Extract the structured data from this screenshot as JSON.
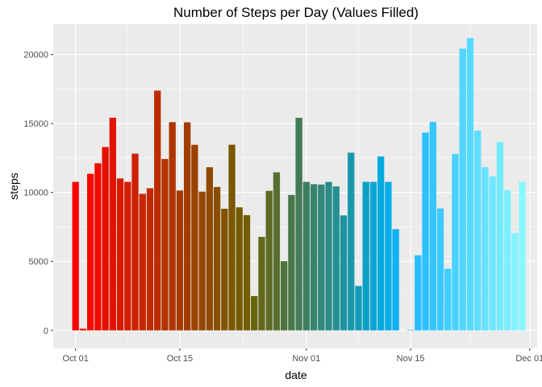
{
  "chart_data": {
    "type": "bar",
    "title": "Number of Steps per Day (Values Filled)",
    "xlabel": "date",
    "ylabel": "steps",
    "x_ticks": [
      "Oct 01",
      "Oct 15",
      "Nov 01",
      "Nov 15",
      "Dec 01"
    ],
    "y_ticks": [
      "0",
      "5000",
      "10000",
      "15000",
      "20000"
    ],
    "y_tick_values": [
      0,
      5000,
      10000,
      15000,
      20000
    ],
    "ylim": [
      -1300,
      22200
    ],
    "xlim": [
      "2012-09-28",
      "2012-12-02"
    ],
    "grid": true,
    "legend": "none",
    "color_scale": "rainbow gradient by date (red to violet)",
    "series": [
      {
        "x": [
          "2012-10-01",
          "2012-10-02",
          "2012-10-03",
          "2012-10-04",
          "2012-10-05",
          "2012-10-06",
          "2012-10-07",
          "2012-10-08",
          "2012-10-09",
          "2012-10-10",
          "2012-10-11",
          "2012-10-12",
          "2012-10-13",
          "2012-10-14",
          "2012-10-15",
          "2012-10-16",
          "2012-10-17",
          "2012-10-18",
          "2012-10-19",
          "2012-10-20",
          "2012-10-21",
          "2012-10-22",
          "2012-10-23",
          "2012-10-24",
          "2012-10-25",
          "2012-10-26",
          "2012-10-27",
          "2012-10-28",
          "2012-10-29",
          "2012-10-30",
          "2012-10-31",
          "2012-11-01",
          "2012-11-02",
          "2012-11-03",
          "2012-11-04",
          "2012-11-05",
          "2012-11-06",
          "2012-11-07",
          "2012-11-08",
          "2012-11-09",
          "2012-11-10",
          "2012-11-11",
          "2012-11-12",
          "2012-11-13",
          "2012-11-14",
          "2012-11-15",
          "2012-11-16",
          "2012-11-17",
          "2012-11-18",
          "2012-11-19",
          "2012-11-20",
          "2012-11-21",
          "2012-11-22",
          "2012-11-23",
          "2012-11-24",
          "2012-11-25",
          "2012-11-26",
          "2012-11-27",
          "2012-11-28",
          "2012-11-29",
          "2012-11-30"
        ],
        "values": [
          10766,
          126,
          11352,
          12116,
          13294,
          15420,
          11015,
          10766,
          12811,
          9900,
          10304,
          17382,
          12426,
          15098,
          10139,
          15084,
          13452,
          10056,
          11829,
          10395,
          8821,
          13460,
          8918,
          8355,
          2492,
          6778,
          10119,
          11458,
          5018,
          9819,
          15414,
          10766,
          10600,
          10571,
          10766,
          10439,
          8334,
          12883,
          3219,
          10766,
          10766,
          12608,
          10765,
          7336,
          0,
          41,
          5441,
          14339,
          15110,
          8841,
          4472,
          12787,
          20427,
          21194,
          14478,
          11834,
          11162,
          13646,
          10183,
          7047,
          10766
        ],
        "colors": [
          "#FF0000",
          "#F90400",
          "#F30800",
          "#ED0C00",
          "#E61000",
          "#E01400",
          "#DA1800",
          "#D41C00",
          "#CD2100",
          "#C72500",
          "#C12900",
          "#BB2D00",
          "#B43100",
          "#AE3500",
          "#A83900",
          "#A23D00",
          "#9B4200",
          "#954600",
          "#8F4A00",
          "#894E00",
          "#825200",
          "#7C5600",
          "#765A00",
          "#705E00",
          "#69630C",
          "#636719",
          "#5D6B25",
          "#576F31",
          "#50733E",
          "#4A774A",
          "#447B56",
          "#3E7F63",
          "#37846F",
          "#31887B",
          "#2B8C88",
          "#259094",
          "#1E94A0",
          "#1898AD",
          "#129CB9",
          "#0CA0C5",
          "#05A5D2",
          "#00A9DE",
          "#07ADEA",
          "#0FB1F7",
          "#16B5FF",
          "#1DB9FF",
          "#25BDFF",
          "#2CC1FF",
          "#33C6FF",
          "#3ACAFF",
          "#42CEFF",
          "#49D2FF",
          "#50D6FF",
          "#57DAFF",
          "#5FDEFF",
          "#66E2FF",
          "#6DE7FF",
          "#75EBFF",
          "#7CEFFF",
          "#83F3FF",
          "#8AF7FF"
        ]
      }
    ]
  }
}
